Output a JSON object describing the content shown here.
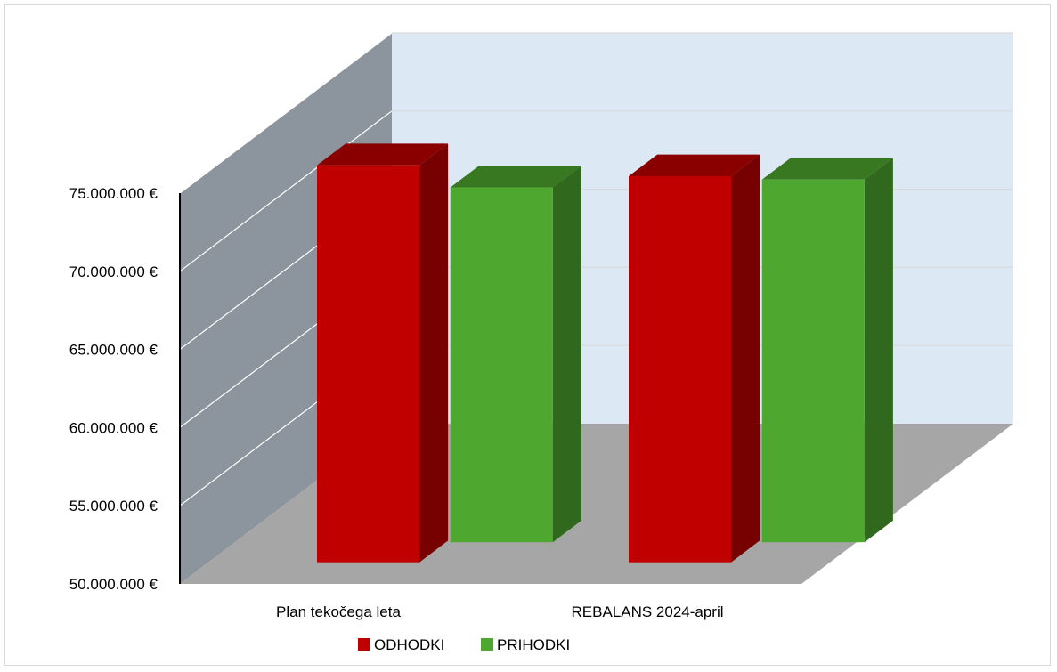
{
  "chart_data": {
    "type": "bar",
    "style": "3d-clustered-column",
    "categories": [
      "Plan tekočega leta",
      "REBALANS 2024-april"
    ],
    "series": [
      {
        "name": "ODHODKI",
        "color": "#c00000",
        "values": [
          75400000,
          74700000
        ]
      },
      {
        "name": "PRIHODKI",
        "color": "#4ea72e",
        "values": [
          72700000,
          73200000
        ]
      }
    ],
    "y_ticks": [
      "50.000.000 €",
      "55.000.000 €",
      "60.000.000 €",
      "65.000.000 €",
      "70.000.000 €",
      "75.000.000 €"
    ],
    "ylim": [
      50000000,
      75000000
    ],
    "grid": true,
    "legend_position": "bottom",
    "colors": {
      "back_wall": "#dce9f5",
      "side_wall": "#8c959d",
      "floor": "#a6a6a6"
    }
  }
}
